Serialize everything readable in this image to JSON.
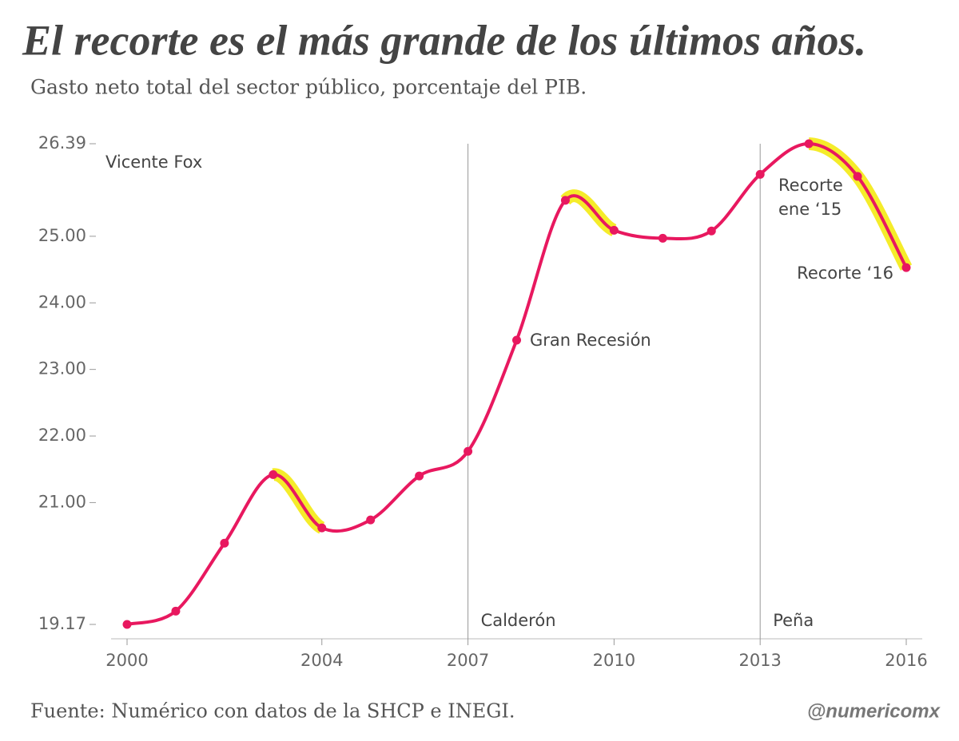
{
  "chart_data": {
    "type": "line",
    "title": "El recorte es el más grande de los últimos años.",
    "subtitle": "Gasto neto total del sector público, porcentaje del PIB.",
    "x": [
      2000,
      2001,
      2002,
      2003,
      2004,
      2005,
      2006,
      2007,
      2008,
      2009,
      2010,
      2011,
      2012,
      2013,
      2014,
      2015,
      2016
    ],
    "series": [
      {
        "name": "Gasto neto total",
        "color": "#e8185f",
        "values": [
          19.17,
          19.37,
          20.39,
          21.42,
          20.62,
          20.74,
          21.4,
          21.77,
          23.44,
          25.54,
          25.09,
          24.97,
          25.08,
          25.93,
          26.39,
          25.9,
          24.53
        ]
      }
    ],
    "highlight_color": "#f5ec2a",
    "xlim": [
      2000,
      2016
    ],
    "xticks": [
      2000,
      2004,
      2007,
      2010,
      2013,
      2016
    ],
    "ylim": [
      19.17,
      26.39
    ],
    "yticks": [
      19.17,
      {
        "value": 21,
        "label": "21.00"
      },
      {
        "value": 22,
        "label": "22.00"
      },
      {
        "value": 23,
        "label": "23.00"
      },
      {
        "value": 24,
        "label": "24.00"
      },
      {
        "value": 25,
        "label": "25.00"
      },
      26.39
    ],
    "eras": [
      {
        "name": "Vicente Fox",
        "start": 2000
      },
      {
        "name": "Calderón",
        "start": 2007
      },
      {
        "name": "Peña",
        "start": 2013
      }
    ],
    "annotations": [
      "Gran Recesión",
      "Recorte",
      "ene ‘15",
      "Recorte ‘16"
    ],
    "source": "Fuente: Numérico con datos de la SHCP e INEGI.",
    "handle": "@numericomx"
  }
}
